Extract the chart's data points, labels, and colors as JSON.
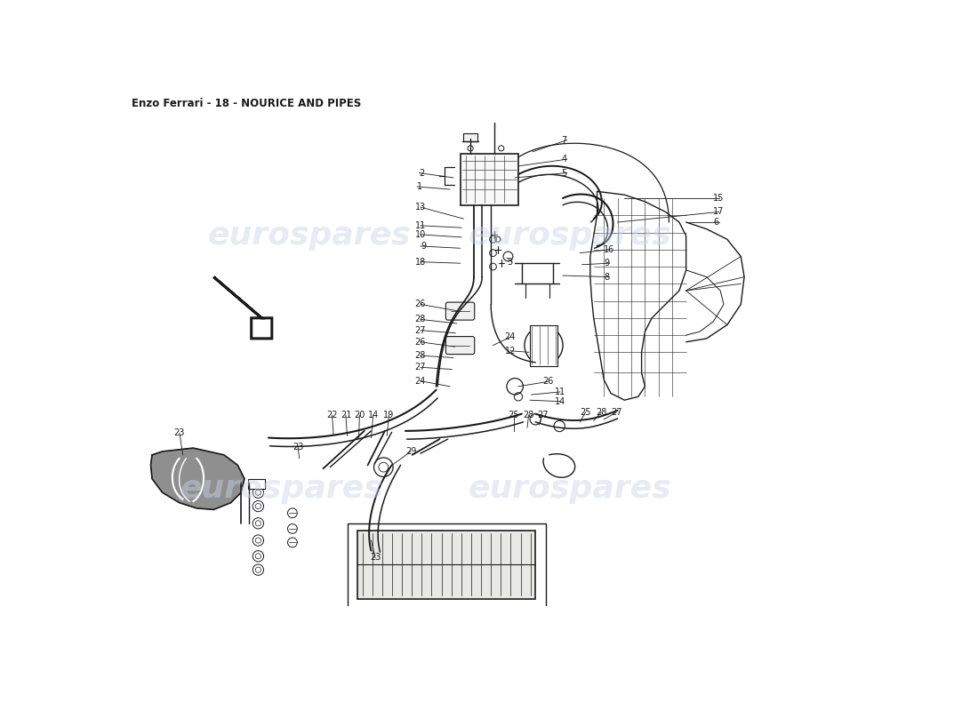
{
  "title": "Enzo Ferrari - 18 - NOURICE AND PIPES",
  "title_fontsize": 8.5,
  "background_color": "#ffffff",
  "line_color": "#1a1a1a",
  "watermark_color": "#c8d4e8",
  "watermark_text": "eurospares",
  "watermark_fontsize": 26,
  "label_fontsize": 7.0,
  "fig_width": 11.0,
  "fig_height": 8.0,
  "dpi": 100
}
